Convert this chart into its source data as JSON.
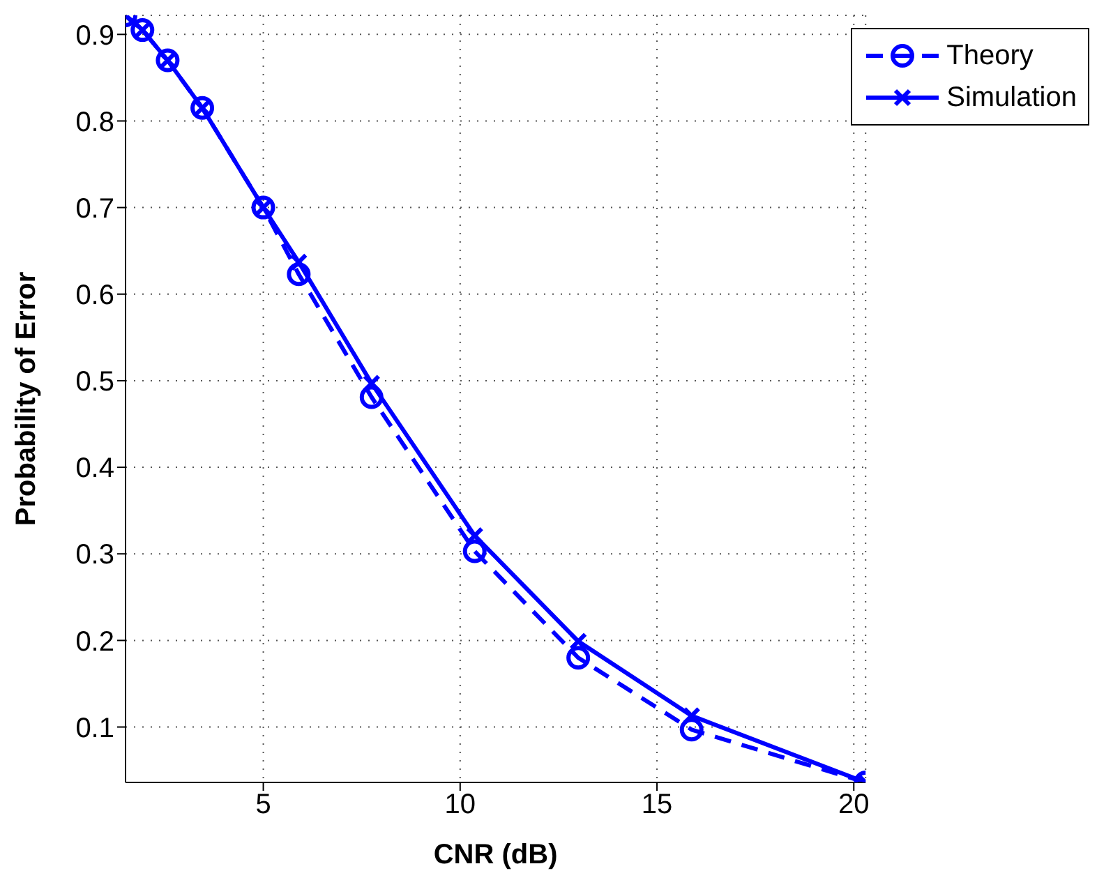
{
  "chart_data": {
    "type": "line",
    "xlabel": "CNR (dB)",
    "ylabel": "Probability of Error",
    "xlim": [
      1.5,
      20.3
    ],
    "ylim": [
      0.036,
      0.922
    ],
    "xticks": [
      5,
      10,
      15,
      20
    ],
    "yticks": [
      0.1,
      0.2,
      0.3,
      0.4,
      0.5,
      0.6,
      0.7,
      0.8,
      0.9
    ],
    "grid": true,
    "legend": "top right",
    "series": [
      {
        "name": "Theory",
        "color": "#0000ff",
        "marker": "circle",
        "line_style": "dashed",
        "x": [
          1.5,
          1.93,
          2.57,
          3.45,
          5.0,
          5.9,
          7.75,
          10.37,
          13.0,
          15.88,
          20.3
        ],
        "values": [
          0.922,
          0.905,
          0.87,
          0.815,
          0.7,
          0.623,
          0.481,
          0.303,
          0.18,
          0.097,
          0.036
        ]
      },
      {
        "name": "Simulation",
        "color": "#0000ff",
        "marker": "cross",
        "line_style": "solid",
        "x": [
          1.5,
          1.93,
          2.57,
          3.45,
          5.0,
          5.9,
          7.75,
          10.37,
          13.0,
          15.88,
          20.3
        ],
        "values": [
          0.922,
          0.905,
          0.87,
          0.815,
          0.7,
          0.637,
          0.497,
          0.321,
          0.199,
          0.113,
          0.036
        ]
      }
    ]
  }
}
